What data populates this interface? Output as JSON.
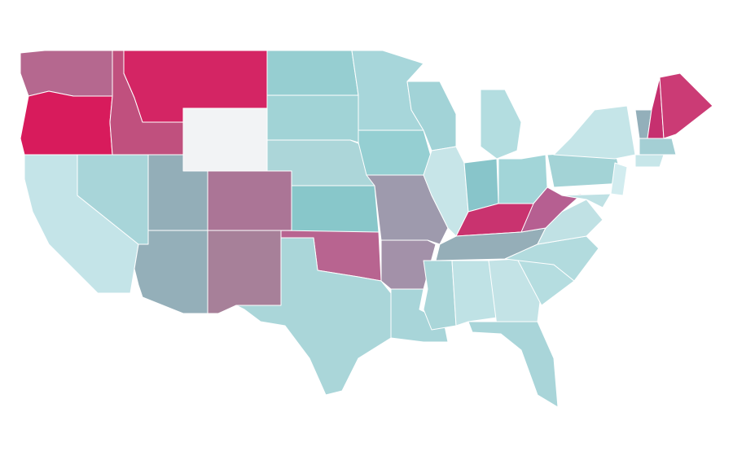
{
  "map": {
    "regions": [
      {
        "color": "#b5688f"
      },
      {
        "color": "#d81b5c"
      },
      {
        "color": "#c4e4e8"
      },
      {
        "color": "#a8d5d9"
      },
      {
        "color": "#c0507e"
      },
      {
        "color": "#d42564"
      },
      {
        "color": "#f2f3f5"
      },
      {
        "color": "#93aeb8"
      },
      {
        "color": "#ab7596"
      },
      {
        "color": "#94afb9"
      },
      {
        "color": "#a78099"
      },
      {
        "color": "#96ced1"
      },
      {
        "color": "#a1d3d6"
      },
      {
        "color": "#acd6d9"
      },
      {
        "color": "#88c7ca"
      },
      {
        "color": "#b86490"
      },
      {
        "color": "#aad6d9"
      },
      {
        "color": "#a7d6da"
      },
      {
        "color": "#95cfd2"
      },
      {
        "color": "#9e9aad"
      },
      {
        "color": "#a391a9"
      },
      {
        "color": "#a8d5d9"
      },
      {
        "color": "#a2d3d7"
      },
      {
        "color": "#c7e5e8"
      },
      {
        "color": "#88c5ca"
      },
      {
        "color": "#b3dde0"
      },
      {
        "color": "#a2d5d8"
      },
      {
        "color": "#c9336f"
      },
      {
        "color": "#95aeb8"
      },
      {
        "color": "#aad6d9"
      },
      {
        "color": "#bfe2e5"
      },
      {
        "color": "#c3e3e6"
      },
      {
        "color": "#a9d5d9"
      },
      {
        "color": "#b5dde0"
      },
      {
        "color": "#b2dbde"
      },
      {
        "color": "#c0e1e4"
      },
      {
        "color": "#b65f91"
      },
      {
        "color": "#a3d3d6"
      },
      {
        "color": "#c5e5e8"
      },
      {
        "color": "#d2ecef"
      },
      {
        "color": "#bfe1e4"
      },
      {
        "color": "#93afba"
      },
      {
        "color": "#c6306f"
      },
      {
        "color": "#cb3b75"
      },
      {
        "color": "#a4cfd4"
      },
      {
        "color": "#c7e6e9"
      }
    ]
  }
}
